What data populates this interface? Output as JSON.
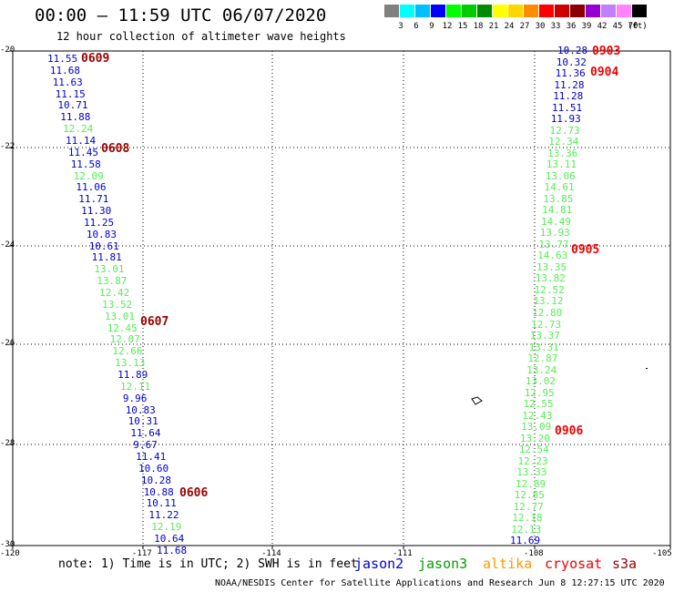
{
  "title": "00:00 – 11:59 UTC 06/07/2020",
  "subtitle": "12 hour collection of altimeter wave heights",
  "color_scale": {
    "labels": [
      "3",
      "6",
      "9",
      "12",
      "15",
      "18",
      "21",
      "24",
      "27",
      "30",
      "33",
      "36",
      "39",
      "42",
      "45",
      "70"
    ],
    "unit": "(ft)",
    "colors": [
      "#808080",
      "#00ffff",
      "#00bfff",
      "#0000ff",
      "#00ff00",
      "#00cd00",
      "#008b00",
      "#ffff00",
      "#ffd700",
      "#ff8c00",
      "#ff0000",
      "#cd0000",
      "#8b0000",
      "#9400d3",
      "#bf7fff",
      "#ff83fa",
      "#000000"
    ]
  },
  "axes": {
    "y_ticks": [
      "-20",
      "-22",
      "-24",
      "-26",
      "-28",
      "-30"
    ],
    "x_ticks": [
      "-120",
      "-117",
      "-114",
      "-111",
      "-108",
      "-105"
    ]
  },
  "note": "note:  1) Time is in UTC;  2) SWH is in feet",
  "satellites": [
    {
      "name": "jason2",
      "color": "#0000cc"
    },
    {
      "name": "jason3",
      "color": "#00a000"
    },
    {
      "name": "altika",
      "color": "#ff9900"
    },
    {
      "name": "cryosat",
      "color": "#ee0000"
    },
    {
      "name": "s3a",
      "color": "#990000"
    }
  ],
  "credit": "NOAA/NESDIS Center for Satellite Applications and Research   Jun  8 12:27:15 UTC 2020",
  "track_left": {
    "values": [
      "11.55",
      "11.68",
      "11.63",
      "11.15",
      "10.71",
      "11.88",
      "12.24",
      "11.14",
      "11.45",
      "11.58",
      "12.09",
      "11.06",
      "11.71",
      "11.30",
      "11.25",
      "10.83",
      "10.61",
      "11.81",
      "13.01",
      "13.87",
      "12.42",
      "13.52",
      "13.01",
      "12.45",
      "12.07",
      "12.66",
      "13.13",
      "11.89",
      "12.11",
      "9.96",
      "10.83",
      "10.31",
      "11.64",
      "9.67",
      "11.41",
      "10.60",
      "10.28",
      "10.88",
      "10.11",
      "11.22",
      "12.19",
      "10.64",
      "11.68"
    ],
    "colors": [
      "b",
      "b",
      "b",
      "b",
      "b",
      "b",
      "g",
      "b",
      "b",
      "b",
      "g",
      "b",
      "b",
      "b",
      "b",
      "b",
      "b",
      "b",
      "g",
      "g",
      "g",
      "g",
      "g",
      "g",
      "g",
      "g",
      "g",
      "b",
      "g",
      "b",
      "b",
      "b",
      "b",
      "b",
      "b",
      "b",
      "b",
      "b",
      "b",
      "b",
      "g",
      "b",
      "b"
    ]
  },
  "track_right": {
    "values": [
      "10.28",
      "10.32",
      "11.36",
      "11.28",
      "11.28",
      "11.51",
      "11.93",
      "12.73",
      "12.34",
      "13.36",
      "13.11",
      "13.06",
      "14.61",
      "13.85",
      "14.81",
      "14.49",
      "13.93",
      "13.77",
      "14.63",
      "13.35",
      "13.82",
      "12.52",
      "13.12",
      "12.80",
      "12.73",
      "13.37",
      "13.31",
      "12.87",
      "13.24",
      "13.02",
      "12.95",
      "12.55",
      "12.43",
      "13.09",
      "13.20",
      "12.54",
      "12.23",
      "13.33",
      "12.89",
      "12.85",
      "12.77",
      "12.18",
      "12.13",
      "11.69"
    ],
    "colors": [
      "b",
      "b",
      "b",
      "b",
      "b",
      "b",
      "b",
      "g",
      "g",
      "g",
      "g",
      "g",
      "g",
      "g",
      "g",
      "g",
      "g",
      "g",
      "g",
      "g",
      "g",
      "g",
      "g",
      "g",
      "g",
      "g",
      "g",
      "g",
      "g",
      "g",
      "g",
      "g",
      "g",
      "g",
      "g",
      "g",
      "g",
      "g",
      "g",
      "g",
      "g",
      "g",
      "g",
      "b"
    ]
  },
  "time_tags": [
    {
      "text": "0609",
      "color": "#990000"
    },
    {
      "text": "0608",
      "color": "#990000"
    },
    {
      "text": "0607",
      "color": "#990000"
    },
    {
      "text": "0606",
      "color": "#990000"
    },
    {
      "text": "0903",
      "color": "#ee0000"
    },
    {
      "text": "0904",
      "color": "#ee0000"
    },
    {
      "text": "0905",
      "color": "#ee0000"
    },
    {
      "text": "0906",
      "color": "#ee0000"
    }
  ]
}
